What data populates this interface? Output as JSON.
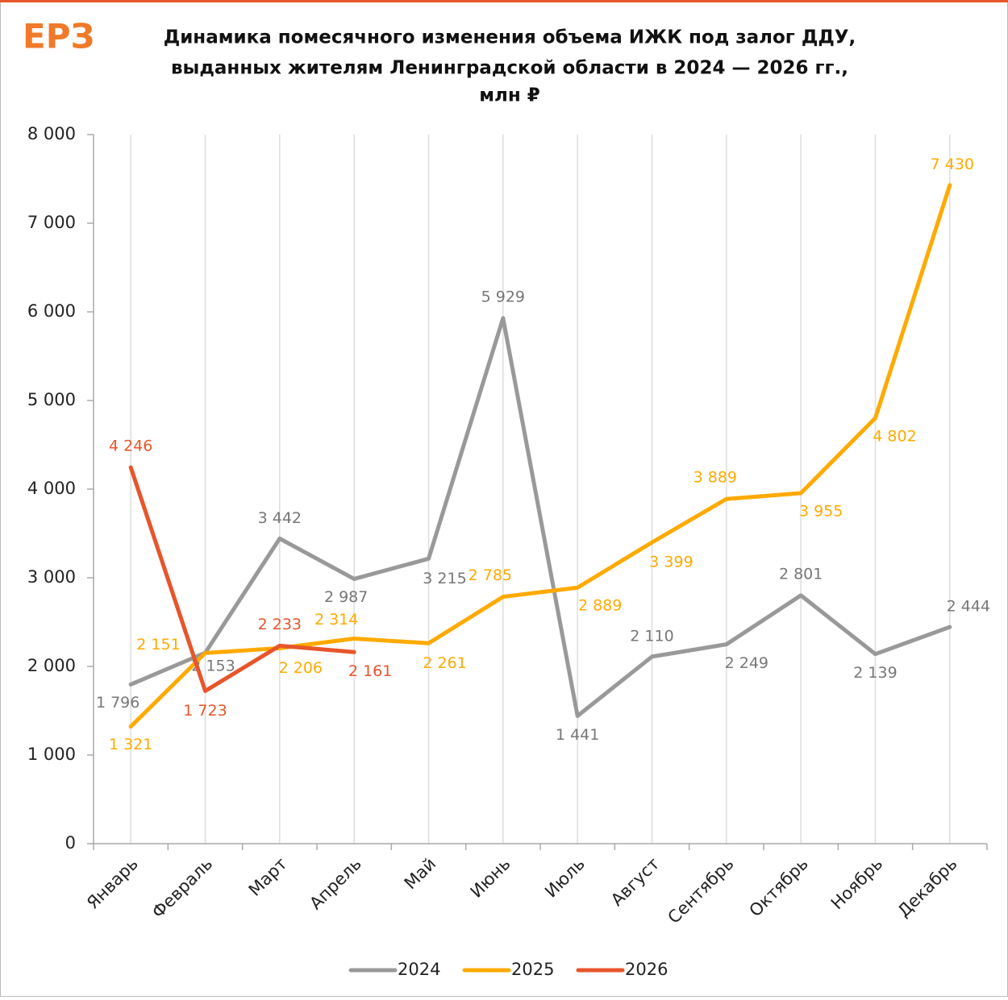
{
  "chart_data": {
    "type": "line",
    "logo": "ЕРЗ",
    "title": [
      "Динамика помесячного изменения объема ИЖК под залог ДДУ,",
      "выданных жителям Ленинградской области в 2024 — 2026 гг.,",
      "млн ₽"
    ],
    "categories": [
      "Январь",
      "Февраль",
      "Март",
      "Апрель",
      "Май",
      "Июнь",
      "Июль",
      "Август",
      "Сентябрь",
      "Октябрь",
      "Ноябрь",
      "Декабрь"
    ],
    "series": [
      {
        "name": "2024",
        "color": "#999999",
        "values": [
          1796,
          2153,
          3442,
          2987,
          3215,
          5929,
          1441,
          2110,
          2249,
          2801,
          2139,
          2444
        ],
        "value_labels": [
          "1 796",
          "2 153",
          "3 442",
          "2 987",
          "3 215",
          "5 929",
          "1 441",
          "2 110",
          "2 249",
          "2 801",
          "2 139",
          "2 444"
        ]
      },
      {
        "name": "2025",
        "color": "#ffaa00",
        "values": [
          1321,
          2151,
          2206,
          2314,
          2261,
          2785,
          2889,
          3399,
          3889,
          3955,
          4802,
          7430
        ],
        "value_labels": [
          "1 321",
          "2 151",
          "2 206",
          "2 314",
          "2 261",
          "2 785",
          "2 889",
          "3 399",
          "3 889",
          "3 955",
          "4 802",
          "7 430"
        ]
      },
      {
        "name": "2026",
        "color": "#e8552b",
        "values": [
          4246,
          1723,
          2233,
          2161,
          null,
          null,
          null,
          null,
          null,
          null,
          null,
          null
        ],
        "value_labels": [
          "4 246",
          "1 723",
          "2 233",
          "2 161",
          null,
          null,
          null,
          null,
          null,
          null,
          null,
          null
        ]
      }
    ],
    "ylim": [
      0,
      8000
    ],
    "yticks": [
      0,
      {
        "value": 1000,
        "label": "1 000"
      },
      {
        "value": 2000,
        "label": "2 000"
      },
      {
        "value": 3000,
        "label": "3 000"
      },
      {
        "value": 4000,
        "label": "4 000"
      },
      {
        "value": 5000,
        "label": "5 000"
      },
      {
        "value": 6000,
        "label": "6 000"
      },
      {
        "value": 7000,
        "label": "7 000"
      },
      {
        "value": 8000,
        "label": "8 000"
      }
    ],
    "grid": true,
    "legend": "bottom"
  }
}
